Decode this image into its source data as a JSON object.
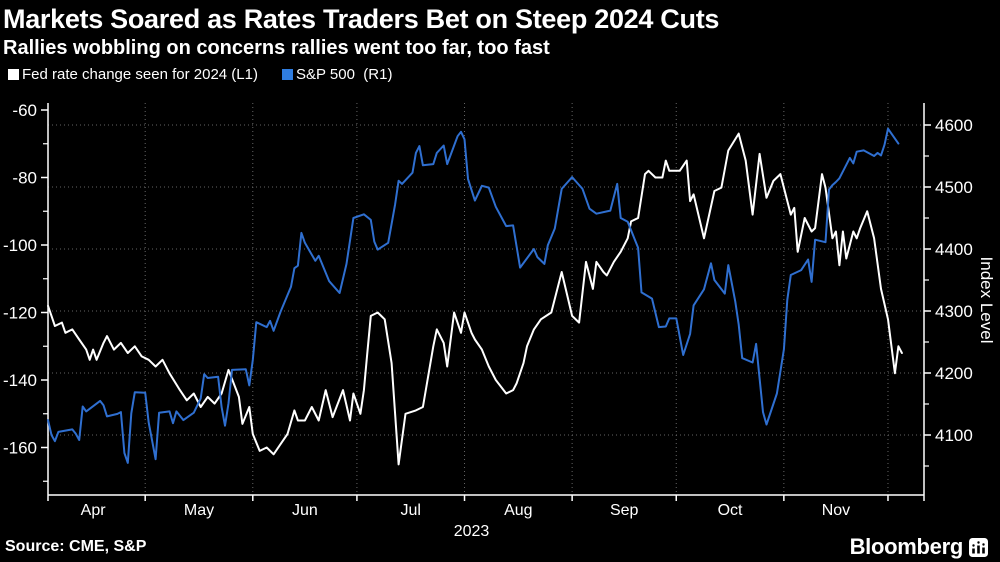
{
  "chart_data": {
    "type": "line",
    "title": "Markets Soared as Rates Traders Bet on Steep 2024 Cuts",
    "subtitle": "Rallies wobbling on concerns rallies went too far, too fast",
    "source": "Source: CME, S&P",
    "brand": "Bloomberg",
    "year_label": "2023",
    "colors": {
      "background": "#000000",
      "text": "#ffffff",
      "grid": "#656565",
      "fed_line": "#ffffff",
      "spx_line": "#2f6fd0"
    },
    "legend": [
      {
        "label": "Fed rate change seen for 2024 (L1)",
        "color": "#ffffff"
      },
      {
        "label": "S&P 500  (R1)",
        "color": "#2f7de0"
      }
    ],
    "x_axis": {
      "unit": "days since 2023-04-03",
      "month_labels": [
        "Apr",
        "May",
        "Jun",
        "Jul",
        "Aug",
        "Sep",
        "Oct",
        "Nov"
      ],
      "month_boundary_days": [
        -2,
        28,
        59,
        89,
        120,
        151,
        181,
        212,
        242
      ],
      "gridline_days": [
        28,
        59,
        89,
        120,
        151,
        181,
        212,
        242
      ]
    },
    "left_axis": {
      "series": "Fed rate change seen for 2024",
      "unit": "basis points",
      "ticks": [
        -60,
        -80,
        -100,
        -120,
        -140,
        -160
      ],
      "minor_ticks": [
        -70,
        -90,
        -110,
        -130,
        -150,
        -170
      ]
    },
    "right_axis": {
      "label": "Index Level",
      "ticks": [
        4600,
        4500,
        4400,
        4300,
        4200,
        4100
      ],
      "minor_ticks": [
        4650,
        4550,
        4450,
        4350,
        4250,
        4150,
        4050
      ]
    },
    "grid": {
      "style": "dotted",
      "horizontal_at": "right_axis ticks",
      "vertical_at": "month boundaries"
    },
    "series": [
      {
        "name": "Fed rate change seen for 2024",
        "axis": "L1",
        "color": "#ffffff",
        "points": [
          [
            0,
            -118
          ],
          [
            1,
            -121
          ],
          [
            2,
            -124
          ],
          [
            4,
            -123
          ],
          [
            5,
            -126
          ],
          [
            7,
            -125
          ],
          [
            9,
            -128
          ],
          [
            11,
            -131
          ],
          [
            12,
            -134
          ],
          [
            13,
            -131
          ],
          [
            14,
            -134
          ],
          [
            16,
            -129
          ],
          [
            17,
            -127
          ],
          [
            19,
            -131
          ],
          [
            21,
            -129
          ],
          [
            23,
            -132
          ],
          [
            25,
            -130
          ],
          [
            27,
            -133
          ],
          [
            29,
            -134
          ],
          [
            31,
            -136
          ],
          [
            33,
            -134
          ],
          [
            35,
            -138
          ],
          [
            38,
            -143
          ],
          [
            40,
            -146
          ],
          [
            42,
            -144
          ],
          [
            44,
            -148
          ],
          [
            46,
            -145
          ],
          [
            48,
            -147
          ],
          [
            50,
            -144
          ],
          [
            52,
            -137
          ],
          [
            55,
            -145
          ],
          [
            56,
            -153
          ],
          [
            58,
            -148
          ],
          [
            59,
            -156
          ],
          [
            61,
            -161
          ],
          [
            63,
            -160
          ],
          [
            65,
            -162
          ],
          [
            67,
            -159
          ],
          [
            69,
            -156
          ],
          [
            71,
            -149
          ],
          [
            72,
            -152
          ],
          [
            74,
            -152
          ],
          [
            76,
            -148
          ],
          [
            78,
            -152
          ],
          [
            80,
            -143
          ],
          [
            82,
            -151
          ],
          [
            85,
            -143
          ],
          [
            87,
            -152
          ],
          [
            88,
            -144
          ],
          [
            90,
            -150
          ],
          [
            91,
            -143
          ],
          [
            92,
            -132
          ],
          [
            93,
            -121
          ],
          [
            95,
            -120
          ],
          [
            97,
            -122
          ],
          [
            99,
            -135
          ],
          [
            101,
            -165
          ],
          [
            103,
            -150
          ],
          [
            106,
            -149
          ],
          [
            108,
            -148
          ],
          [
            111,
            -130
          ],
          [
            112,
            -125
          ],
          [
            114,
            -129
          ],
          [
            115,
            -136
          ],
          [
            117,
            -120
          ],
          [
            119,
            -126
          ],
          [
            120,
            -120
          ],
          [
            122,
            -126
          ],
          [
            123,
            -128
          ],
          [
            125,
            -131
          ],
          [
            127,
            -136
          ],
          [
            129,
            -140
          ],
          [
            132,
            -144
          ],
          [
            134,
            -143
          ],
          [
            135,
            -141
          ],
          [
            137,
            -135
          ],
          [
            138,
            -130
          ],
          [
            140,
            -125
          ],
          [
            142,
            -122
          ],
          [
            145,
            -120
          ],
          [
            148,
            -108
          ],
          [
            151,
            -121
          ],
          [
            153,
            -123
          ],
          [
            155,
            -105
          ],
          [
            157,
            -113
          ],
          [
            158,
            -105
          ],
          [
            160,
            -108
          ],
          [
            161,
            -109
          ],
          [
            163,
            -105
          ],
          [
            165,
            -102
          ],
          [
            167,
            -98
          ],
          [
            168,
            -93
          ],
          [
            170,
            -92
          ],
          [
            172,
            -79
          ],
          [
            173,
            -78
          ],
          [
            175,
            -80
          ],
          [
            177,
            -80
          ],
          [
            178,
            -75
          ],
          [
            179,
            -78
          ],
          [
            182,
            -78
          ],
          [
            184,
            -75
          ],
          [
            185,
            -87
          ],
          [
            186,
            -85
          ],
          [
            189,
            -98
          ],
          [
            192,
            -84
          ],
          [
            194,
            -83
          ],
          [
            196,
            -72
          ],
          [
            199,
            -67
          ],
          [
            201,
            -75
          ],
          [
            203,
            -91
          ],
          [
            205,
            -73
          ],
          [
            207,
            -86
          ],
          [
            209,
            -81
          ],
          [
            211,
            -79
          ],
          [
            214,
            -91
          ],
          [
            215,
            -89
          ],
          [
            216,
            -102
          ],
          [
            218,
            -92
          ],
          [
            220,
            -96
          ],
          [
            221,
            -95
          ],
          [
            223,
            -79
          ],
          [
            224,
            -83
          ],
          [
            226,
            -98
          ],
          [
            227,
            -96
          ],
          [
            228,
            -106
          ],
          [
            229,
            -96
          ],
          [
            230,
            -104
          ],
          [
            232,
            -96
          ],
          [
            233,
            -98
          ],
          [
            234,
            -95
          ],
          [
            236,
            -90
          ],
          [
            238,
            -98
          ],
          [
            240,
            -113
          ],
          [
            242,
            -122
          ],
          [
            244,
            -138
          ],
          [
            245,
            -130
          ],
          [
            246,
            -132
          ]
        ]
      },
      {
        "name": "S&P 500",
        "axis": "R1",
        "color": "#2f6fd0",
        "points": [
          [
            0,
            4124
          ],
          [
            1,
            4100
          ],
          [
            2,
            4090
          ],
          [
            3,
            4105
          ],
          [
            7,
            4109
          ],
          [
            8,
            4102
          ],
          [
            9,
            4092
          ],
          [
            10,
            4146
          ],
          [
            11,
            4138
          ],
          [
            15,
            4155
          ],
          [
            16,
            4148
          ],
          [
            17,
            4130
          ],
          [
            20,
            4134
          ],
          [
            21,
            4137
          ],
          [
            22,
            4071
          ],
          [
            23,
            4055
          ],
          [
            24,
            4135
          ],
          [
            25,
            4169
          ],
          [
            28,
            4168
          ],
          [
            29,
            4120
          ],
          [
            30,
            4091
          ],
          [
            31,
            4061
          ],
          [
            32,
            4136
          ],
          [
            35,
            4138
          ],
          [
            36,
            4119
          ],
          [
            37,
            4138
          ],
          [
            39,
            4124
          ],
          [
            42,
            4136
          ],
          [
            44,
            4159
          ],
          [
            45,
            4198
          ],
          [
            46,
            4192
          ],
          [
            49,
            4194
          ],
          [
            50,
            4145
          ],
          [
            51,
            4115
          ],
          [
            52,
            4151
          ],
          [
            53,
            4205
          ],
          [
            57,
            4206
          ],
          [
            58,
            4180
          ],
          [
            59,
            4221
          ],
          [
            60,
            4282
          ],
          [
            63,
            4274
          ],
          [
            64,
            4284
          ],
          [
            65,
            4268
          ],
          [
            67,
            4299
          ],
          [
            70,
            4339
          ],
          [
            71,
            4369
          ],
          [
            72,
            4373
          ],
          [
            73,
            4426
          ],
          [
            74,
            4410
          ],
          [
            77,
            4381
          ],
          [
            78,
            4389
          ],
          [
            81,
            4348
          ],
          [
            84,
            4329
          ],
          [
            86,
            4376
          ],
          [
            88,
            4450
          ],
          [
            91,
            4456
          ],
          [
            93,
            4447
          ],
          [
            94,
            4412
          ],
          [
            95,
            4399
          ],
          [
            98,
            4410
          ],
          [
            100,
            4472
          ],
          [
            101,
            4510
          ],
          [
            102,
            4505
          ],
          [
            105,
            4523
          ],
          [
            106,
            4555
          ],
          [
            107,
            4566
          ],
          [
            108,
            4535
          ],
          [
            111,
            4537
          ],
          [
            112,
            4555
          ],
          [
            114,
            4567
          ],
          [
            115,
            4537
          ],
          [
            118,
            4582
          ],
          [
            119,
            4589
          ],
          [
            120,
            4577
          ],
          [
            121,
            4513
          ],
          [
            123,
            4478
          ],
          [
            125,
            4502
          ],
          [
            127,
            4499
          ],
          [
            129,
            4468
          ],
          [
            132,
            4437
          ],
          [
            134,
            4438
          ],
          [
            135,
            4404
          ],
          [
            136,
            4370
          ],
          [
            140,
            4400
          ],
          [
            141,
            4387
          ],
          [
            143,
            4376
          ],
          [
            144,
            4406
          ],
          [
            146,
            4433
          ],
          [
            148,
            4497
          ],
          [
            151,
            4516
          ],
          [
            154,
            4497
          ],
          [
            156,
            4465
          ],
          [
            158,
            4457
          ],
          [
            162,
            4462
          ],
          [
            164,
            4505
          ],
          [
            165,
            4450
          ],
          [
            167,
            4444
          ],
          [
            170,
            4402
          ],
          [
            171,
            4330
          ],
          [
            174,
            4320
          ],
          [
            176,
            4274
          ],
          [
            178,
            4275
          ],
          [
            179,
            4288
          ],
          [
            181,
            4288
          ],
          [
            183,
            4229
          ],
          [
            185,
            4263
          ],
          [
            186,
            4309
          ],
          [
            189,
            4335
          ],
          [
            191,
            4377
          ],
          [
            192,
            4350
          ],
          [
            195,
            4328
          ],
          [
            196,
            4374
          ],
          [
            198,
            4315
          ],
          [
            199,
            4278
          ],
          [
            200,
            4224
          ],
          [
            203,
            4217
          ],
          [
            204,
            4247
          ],
          [
            206,
            4137
          ],
          [
            207,
            4117
          ],
          [
            210,
            4167
          ],
          [
            212,
            4238
          ],
          [
            213,
            4318
          ],
          [
            214,
            4358
          ],
          [
            217,
            4366
          ],
          [
            219,
            4383
          ],
          [
            220,
            4347
          ],
          [
            221,
            4415
          ],
          [
            224,
            4411
          ],
          [
            225,
            4496
          ],
          [
            226,
            4503
          ],
          [
            227,
            4508
          ],
          [
            228,
            4514
          ],
          [
            231,
            4547
          ],
          [
            232,
            4538
          ],
          [
            233,
            4557
          ],
          [
            235,
            4559
          ],
          [
            238,
            4550
          ],
          [
            239,
            4555
          ],
          [
            240,
            4551
          ],
          [
            241,
            4568
          ],
          [
            242,
            4594
          ],
          [
            245,
            4570
          ]
        ]
      }
    ]
  }
}
